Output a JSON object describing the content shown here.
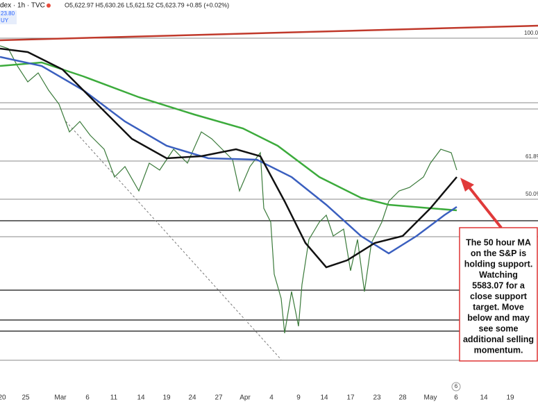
{
  "header": {
    "symbol": "dex · 1h · TVC",
    "ohlc": "O5,622.97  H5,630.26  L5,621.52  C5,623.79  +0.85 (+0.02%)",
    "price": "23.80",
    "button": "UY"
  },
  "fib_labels": [
    "100.0%",
    "61.8%",
    "50.0%"
  ],
  "x_labels": [
    "20",
    "25",
    "Mar",
    "6",
    "11",
    "14",
    "19",
    "24",
    "27",
    "Apr",
    "4",
    "9",
    "14",
    "17",
    "23",
    "28",
    "May",
    "6",
    "14",
    "19"
  ],
  "marker": "6",
  "annotation": [
    "The 50 hour MA",
    "on the S&P is",
    "holding support.",
    "Watching",
    "5583.07 for a",
    "close support",
    "target.  Move",
    "below and may",
    "see some",
    "additional selling",
    "momentum."
  ]
}
